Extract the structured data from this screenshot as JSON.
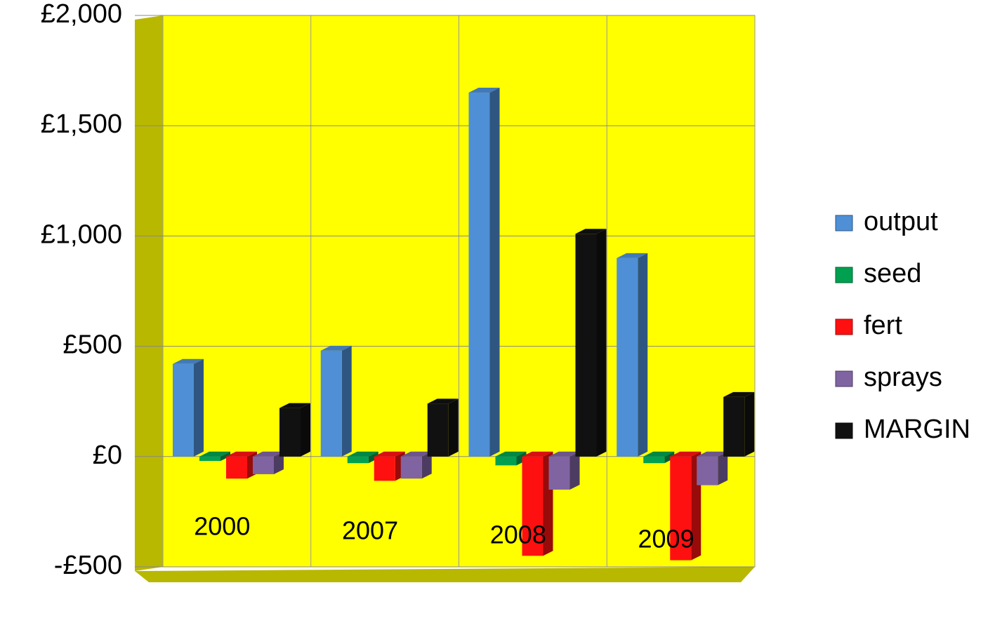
{
  "chart_data": {
    "type": "bar",
    "categories": [
      "2000",
      "2007",
      "2008",
      "2009"
    ],
    "series": [
      {
        "name": "output",
        "color": "#4f8fd6",
        "values": [
          420,
          480,
          1650,
          900
        ]
      },
      {
        "name": "seed",
        "color": "#00a050",
        "values": [
          -20,
          -30,
          -40,
          -30
        ]
      },
      {
        "name": "fert",
        "color": "#ff1010",
        "values": [
          -100,
          -110,
          -450,
          -470
        ]
      },
      {
        "name": "sprays",
        "color": "#8064a2",
        "values": [
          -80,
          -100,
          -150,
          -130
        ]
      },
      {
        "name": "MARGIN",
        "color": "#111111",
        "values": [
          220,
          240,
          1010,
          270
        ]
      }
    ],
    "ylim": [
      -500,
      2000
    ],
    "yticks": [
      {
        "value": -500,
        "label": "-£500"
      },
      {
        "value": 0,
        "label": "£0"
      },
      {
        "value": 500,
        "label": "£500"
      },
      {
        "value": 1000,
        "label": "£1,000"
      },
      {
        "value": 1500,
        "label": "£1,500"
      },
      {
        "value": 2000,
        "label": "£2,000"
      }
    ],
    "grid": true,
    "legend": "right",
    "background": "#ffff00"
  }
}
